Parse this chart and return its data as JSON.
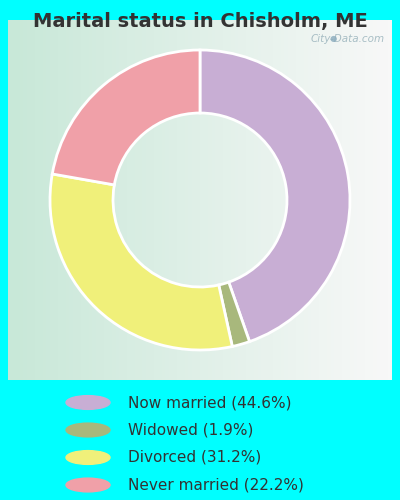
{
  "title": "Marital status in Chisholm, ME",
  "slices": [
    44.6,
    1.9,
    31.2,
    22.2
  ],
  "labels": [
    "Now married (44.6%)",
    "Widowed (1.9%)",
    "Divorced (31.2%)",
    "Never married (22.2%)"
  ],
  "colors": [
    "#c8aed4",
    "#a8b87c",
    "#f0f07a",
    "#f0a0a8"
  ],
  "outer_bg": "#00ffff",
  "chart_bg_left": "#c8e8d8",
  "chart_bg_right": "#f0f4f0",
  "donut_width": 0.42,
  "title_fontsize": 14,
  "legend_fontsize": 11,
  "watermark": "City-Data.com",
  "start_angle": 90,
  "text_color": "#333333"
}
